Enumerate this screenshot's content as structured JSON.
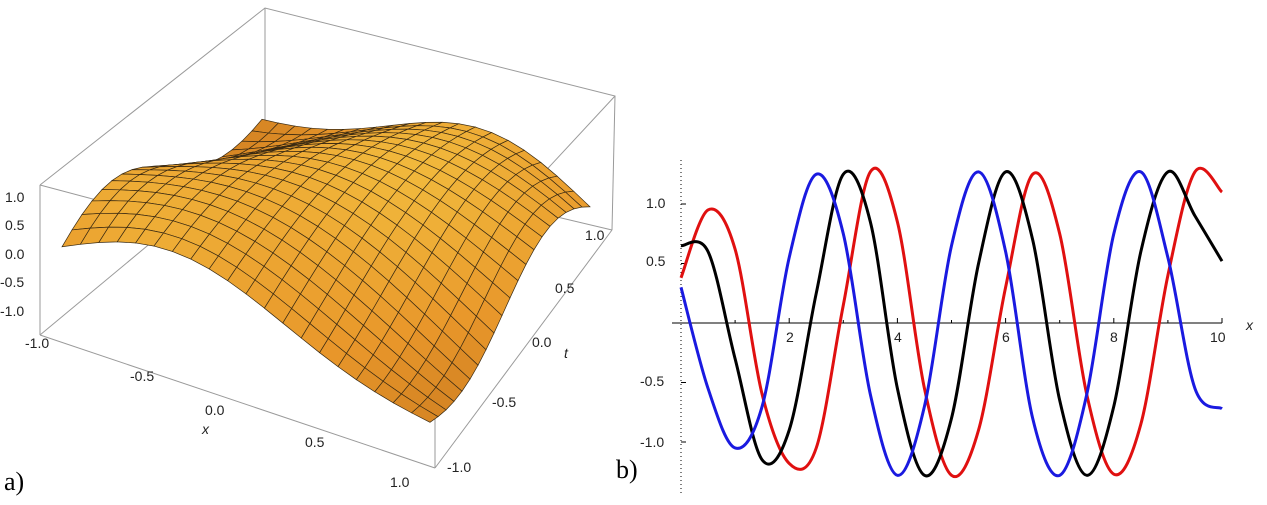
{
  "panel_labels": {
    "a": "a)",
    "b": "b)"
  },
  "colors": {
    "surface_light": "#f3c040",
    "surface_mid": "#e8962a",
    "surface_dark": "#b86a18",
    "mesh": "#3a2a12",
    "box": "#9a9a9a",
    "series_red": "#e01010",
    "series_black": "#000000",
    "series_blue": "#1a1ae0"
  },
  "chart_data": [
    {
      "type": "surface",
      "xlabel": "x",
      "ylabel": "t",
      "zlabel": "",
      "xlim": [
        -1.0,
        1.0
      ],
      "tlim": [
        -1.0,
        1.0
      ],
      "zlim": [
        -1.2,
        1.2
      ],
      "x_ticks": [
        "-1.0",
        "-0.5",
        "0.0",
        "0.5",
        "1.0"
      ],
      "t_ticks": [
        "-1.0",
        "-0.5",
        "0.0",
        "0.5",
        "1.0"
      ],
      "z_ticks": [
        "1.0",
        "0.5",
        "0.0",
        "-0.5",
        "-1.0"
      ],
      "grid_lines": 20
    },
    {
      "type": "line",
      "xlabel": "x",
      "ylabel": "",
      "xlim": [
        0,
        10
      ],
      "ylim": [
        -1.3,
        1.3
      ],
      "x_ticks": [
        "2",
        "4",
        "6",
        "8",
        "10"
      ],
      "y_ticks": [
        "1.0",
        "0.5",
        "-0.5",
        "-1.0"
      ],
      "series": [
        {
          "color": "red",
          "x": [
            0,
            0.5,
            1,
            1.5,
            2,
            2.5,
            3,
            3.5,
            4,
            4.5,
            5,
            5.5,
            6,
            6.5,
            7,
            7.5,
            8,
            8.5,
            9,
            9.5,
            10
          ],
          "values": [
            0.38,
            0.95,
            0.62,
            -0.6,
            -1.18,
            -1.05,
            0.15,
            1.27,
            0.85,
            -0.55,
            -1.28,
            -0.9,
            0.3,
            1.25,
            0.75,
            -0.6,
            -1.27,
            -0.85,
            0.4,
            1.27,
            1.1
          ]
        },
        {
          "color": "black",
          "x": [
            0,
            0.5,
            1,
            1.5,
            2,
            2.5,
            3,
            3.5,
            4,
            4.5,
            5,
            5.5,
            6,
            6.5,
            7,
            7.5,
            8,
            8.5,
            9,
            9.5,
            10
          ],
          "values": [
            0.65,
            0.6,
            -0.3,
            -1.15,
            -0.9,
            0.25,
            1.25,
            0.85,
            -0.55,
            -1.28,
            -0.8,
            0.5,
            1.27,
            0.7,
            -0.65,
            -1.28,
            -0.7,
            0.6,
            1.27,
            0.9,
            0.52
          ]
        },
        {
          "color": "blue",
          "x": [
            0,
            0.5,
            1,
            1.5,
            2,
            2.5,
            3,
            3.5,
            4,
            4.5,
            5,
            5.5,
            6,
            6.5,
            7,
            7.5,
            8,
            8.5,
            9,
            9.5,
            10
          ],
          "values": [
            0.3,
            -0.55,
            -1.05,
            -0.7,
            0.55,
            1.25,
            0.75,
            -0.6,
            -1.28,
            -0.7,
            0.65,
            1.27,
            0.6,
            -0.8,
            -1.28,
            -0.6,
            0.75,
            1.27,
            0.55,
            -0.55,
            -0.72
          ]
        }
      ]
    }
  ]
}
